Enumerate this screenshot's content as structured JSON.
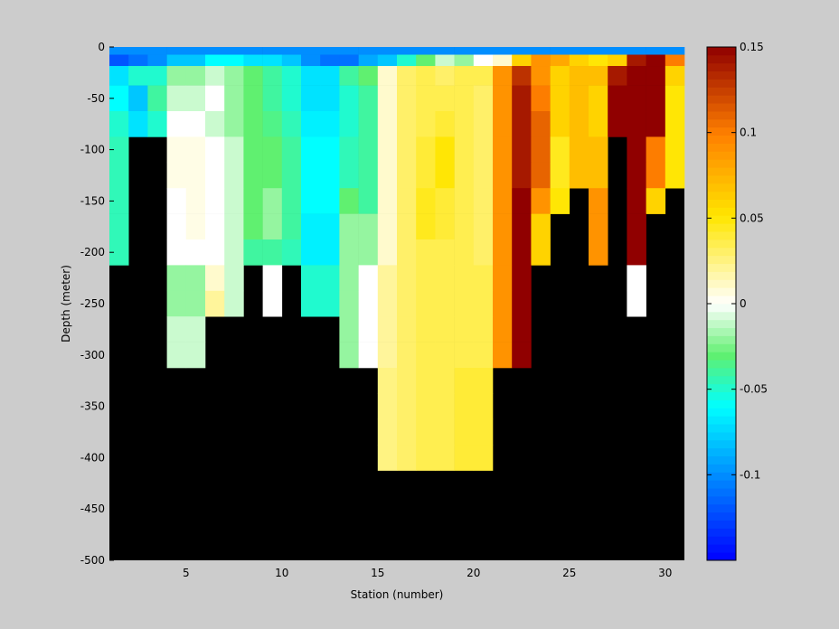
{
  "chart_data": {
    "type": "heatmap",
    "title": "",
    "xlabel": "Station (number)",
    "ylabel": "Depth (meter)",
    "xlim": [
      1,
      31
    ],
    "ylim": [
      -500,
      0
    ],
    "x_ticks": [
      5,
      10,
      15,
      20,
      25,
      30
    ],
    "y_ticks": [
      0,
      -50,
      -100,
      -150,
      -200,
      -250,
      -300,
      -350,
      -400,
      -450,
      -500
    ],
    "stations": [
      1,
      2,
      3,
      4,
      5,
      6,
      7,
      8,
      9,
      10,
      11,
      12,
      13,
      14,
      15,
      16,
      17,
      18,
      19,
      20,
      21,
      22,
      23,
      24,
      25,
      26,
      27,
      28,
      29,
      30
    ],
    "depths": [
      -3,
      -12,
      -25,
      -50,
      -75,
      -100,
      -125,
      -150,
      -175,
      -200,
      -225,
      -250,
      -275,
      -300,
      -325,
      -350,
      -375,
      -400
    ],
    "values": [
      [
        -0.1,
        -0.1,
        -0.1,
        -0.1,
        -0.1,
        -0.1,
        -0.1,
        -0.1,
        -0.1,
        -0.1,
        -0.1,
        -0.1,
        -0.1,
        -0.1,
        -0.1,
        -0.1,
        -0.1,
        -0.1,
        -0.1,
        -0.1,
        -0.1,
        -0.1,
        -0.1,
        -0.1,
        -0.1,
        -0.1,
        -0.1,
        -0.1,
        -0.1,
        -0.1
      ],
      [
        -0.12,
        -0.11,
        -0.1,
        -0.08,
        -0.08,
        -0.06,
        -0.06,
        -0.07,
        -0.07,
        -0.08,
        -0.1,
        -0.11,
        -0.11,
        -0.09,
        -0.08,
        -0.05,
        -0.03,
        -0.01,
        -0.02,
        0.0,
        0.01,
        0.06,
        0.09,
        0.08,
        0.06,
        0.05,
        0.06,
        0.14,
        0.15,
        0.1
      ],
      [
        -0.07,
        -0.05,
        -0.05,
        -0.02,
        -0.02,
        -0.01,
        -0.02,
        -0.03,
        -0.04,
        -0.05,
        -0.07,
        -0.07,
        -0.04,
        -0.03,
        0.01,
        0.03,
        0.035,
        0.03,
        0.035,
        0.035,
        0.09,
        0.13,
        0.09,
        0.06,
        0.07,
        0.07,
        0.14,
        0.15,
        0.15,
        0.06
      ],
      [
        -0.06,
        -0.08,
        -0.04,
        -0.01,
        -0.01,
        0.0,
        -0.02,
        -0.03,
        -0.04,
        -0.05,
        -0.07,
        -0.07,
        -0.05,
        -0.04,
        0.01,
        0.03,
        0.035,
        0.035,
        0.035,
        0.03,
        0.09,
        0.14,
        0.1,
        0.06,
        0.07,
        0.06,
        0.15,
        0.15,
        0.15,
        0.05
      ],
      [
        -0.05,
        -0.07,
        -0.05,
        0.0,
        0.0,
        -0.01,
        -0.02,
        -0.03,
        -0.035,
        -0.045,
        -0.065,
        -0.065,
        -0.05,
        -0.04,
        0.01,
        0.03,
        0.035,
        0.04,
        0.035,
        0.03,
        0.09,
        0.14,
        0.11,
        0.06,
        0.07,
        0.06,
        0.15,
        0.15,
        0.15,
        0.05
      ],
      [
        -0.045,
        null,
        null,
        0.005,
        0.005,
        0.0,
        -0.01,
        -0.03,
        -0.03,
        -0.04,
        -0.06,
        -0.06,
        -0.045,
        -0.04,
        0.01,
        0.03,
        0.04,
        0.05,
        0.035,
        0.03,
        0.09,
        0.14,
        0.11,
        0.045,
        0.07,
        0.07,
        null,
        0.15,
        0.1,
        0.05
      ],
      [
        -0.045,
        null,
        null,
        0.005,
        0.005,
        0.0,
        -0.01,
        -0.03,
        -0.03,
        -0.04,
        -0.06,
        -0.06,
        -0.045,
        -0.04,
        0.01,
        0.03,
        0.04,
        0.05,
        0.035,
        0.03,
        0.09,
        0.14,
        0.11,
        0.045,
        0.07,
        0.07,
        null,
        0.15,
        0.1,
        0.05
      ],
      [
        -0.045,
        null,
        null,
        0.0,
        0.005,
        0.0,
        -0.01,
        -0.03,
        -0.02,
        -0.04,
        -0.06,
        -0.06,
        -0.03,
        -0.04,
        0.01,
        0.03,
        0.045,
        0.04,
        0.035,
        0.03,
        0.09,
        0.15,
        0.09,
        0.05,
        null,
        0.09,
        null,
        0.15,
        0.06,
        null
      ],
      [
        -0.045,
        null,
        null,
        0.0,
        0.005,
        0.0,
        -0.01,
        -0.03,
        -0.02,
        -0.04,
        -0.065,
        -0.065,
        -0.02,
        -0.02,
        0.01,
        0.03,
        0.045,
        0.04,
        0.035,
        0.03,
        0.09,
        0.15,
        0.06,
        null,
        null,
        0.09,
        null,
        0.15,
        null,
        null
      ],
      [
        -0.045,
        null,
        null,
        0.0,
        0.0,
        0.0,
        -0.01,
        -0.04,
        -0.04,
        -0.045,
        -0.065,
        -0.065,
        -0.02,
        -0.02,
        0.01,
        0.03,
        0.035,
        0.035,
        0.035,
        0.03,
        0.09,
        0.15,
        0.06,
        null,
        null,
        0.09,
        null,
        0.15,
        null,
        null
      ],
      [
        null,
        null,
        null,
        -0.02,
        -0.02,
        0.01,
        -0.01,
        null,
        0.0,
        null,
        -0.05,
        -0.05,
        -0.02,
        0.0,
        0.02,
        0.03,
        0.035,
        0.035,
        0.035,
        0.035,
        0.09,
        0.15,
        null,
        null,
        null,
        null,
        null,
        0.0,
        null,
        null
      ],
      [
        null,
        null,
        null,
        -0.02,
        -0.02,
        0.02,
        -0.01,
        null,
        0.0,
        null,
        -0.05,
        -0.05,
        -0.02,
        0.0,
        0.02,
        0.03,
        0.035,
        0.035,
        0.035,
        0.035,
        0.09,
        0.15,
        null,
        null,
        null,
        null,
        null,
        0.0,
        null,
        null
      ],
      [
        null,
        null,
        null,
        -0.01,
        -0.01,
        null,
        null,
        null,
        null,
        null,
        null,
        null,
        -0.02,
        0.0,
        0.02,
        0.03,
        0.035,
        0.035,
        0.035,
        0.035,
        0.09,
        0.15,
        null,
        null,
        null,
        null,
        null,
        null,
        null,
        null
      ],
      [
        null,
        null,
        null,
        -0.01,
        -0.01,
        null,
        null,
        null,
        null,
        null,
        null,
        null,
        -0.02,
        0.0,
        0.02,
        0.03,
        0.035,
        0.035,
        0.035,
        0.035,
        0.09,
        0.15,
        null,
        null,
        null,
        null,
        null,
        null,
        null,
        null
      ],
      [
        null,
        null,
        null,
        null,
        null,
        null,
        null,
        null,
        null,
        null,
        null,
        null,
        null,
        null,
        0.025,
        0.03,
        0.035,
        0.035,
        0.04,
        0.04,
        null,
        null,
        null,
        null,
        null,
        null,
        null,
        null,
        null,
        null
      ],
      [
        null,
        null,
        null,
        null,
        null,
        null,
        null,
        null,
        null,
        null,
        null,
        null,
        null,
        null,
        0.025,
        0.03,
        0.035,
        0.035,
        0.04,
        0.04,
        null,
        null,
        null,
        null,
        null,
        null,
        null,
        null,
        null,
        null
      ],
      [
        null,
        null,
        null,
        null,
        null,
        null,
        null,
        null,
        null,
        null,
        null,
        null,
        null,
        null,
        0.025,
        0.03,
        0.035,
        0.035,
        0.04,
        0.04,
        null,
        null,
        null,
        null,
        null,
        null,
        null,
        null,
        null,
        null
      ],
      [
        null,
        null,
        null,
        null,
        null,
        null,
        null,
        null,
        null,
        null,
        null,
        null,
        null,
        null,
        0.025,
        0.03,
        0.035,
        0.035,
        0.04,
        0.04,
        null,
        null,
        null,
        null,
        null,
        null,
        null,
        null,
        null,
        null
      ]
    ],
    "nan_color": "#000000",
    "colormap": "jet-white",
    "colorbar": {
      "clim": [
        -0.15,
        0.15
      ],
      "ticks": [
        -0.1,
        -0.05,
        0,
        0.05,
        0.1,
        0.15
      ],
      "tick_labels": [
        "-0.1",
        "-0.05",
        "0",
        "0.05",
        "0.1",
        "0.15"
      ],
      "placement": "right"
    },
    "grid": false
  }
}
